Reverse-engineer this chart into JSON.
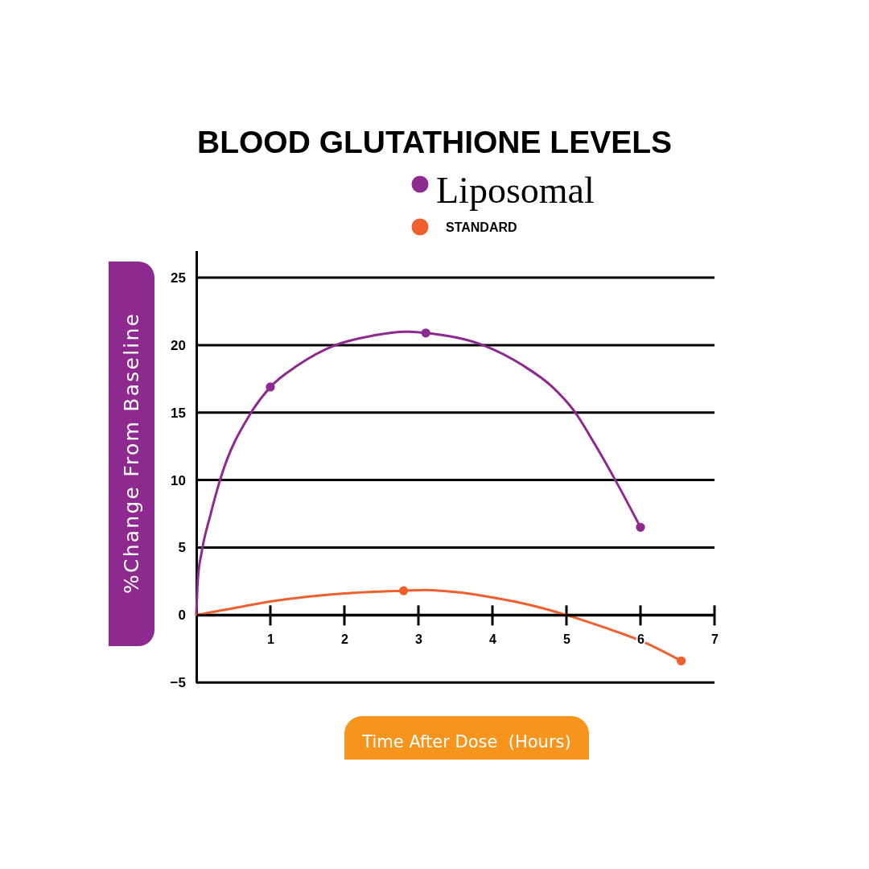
{
  "chart_data": {
    "type": "line",
    "title": "BLOOD GLUTATHIONE LEVELS",
    "xlabel": "Time After Dose  (Hours)",
    "ylabel": "%Change From Baseline",
    "xlim": [
      0,
      7
    ],
    "xticks": [
      1,
      2,
      3,
      4,
      5,
      6,
      7
    ],
    "ylim": [
      -5,
      27
    ],
    "yticks": [
      -5,
      0,
      5,
      10,
      15,
      20,
      25
    ],
    "grid": "y",
    "legend": "top",
    "series": [
      {
        "color": "#8e2a8f",
        "x": [
          0,
          0.02,
          0.07,
          0.19,
          0.32,
          0.74,
          1,
          1.37,
          1.88,
          2.38,
          2.82,
          3.1,
          3.87,
          4.41,
          4.81,
          5.12,
          5.39,
          5.66,
          6
        ],
        "values": [
          0,
          2.6,
          4.6,
          7.4,
          10,
          15,
          16.9,
          18.5,
          20,
          20.7,
          21,
          20.9,
          20,
          18.5,
          16.9,
          15,
          12.6,
          10,
          6.5
        ]
      },
      {
        "type": "scatter",
        "name": "Liposomal",
        "color": "#8e2a8f",
        "marker": "circle",
        "x": [
          1,
          3.1,
          6
        ],
        "values": [
          16.9,
          20.9,
          6.5
        ]
      },
      {
        "color": "#f05f2e",
        "x": [
          0,
          0.5,
          1,
          2,
          2.8,
          3.1,
          3.5,
          4,
          4.5,
          5,
          5.5,
          6,
          6.55
        ],
        "values": [
          0,
          0.5,
          1,
          1.6,
          1.8,
          1.85,
          1.7,
          1.3,
          0.75,
          0,
          -0.9,
          -1.9,
          -3.4
        ]
      },
      {
        "type": "scatter",
        "name": "STANDARD",
        "color": "#f05f2e",
        "marker": "circle",
        "x": [
          2.8,
          6.55
        ],
        "values": [
          1.8,
          -3.4
        ]
      }
    ]
  }
}
